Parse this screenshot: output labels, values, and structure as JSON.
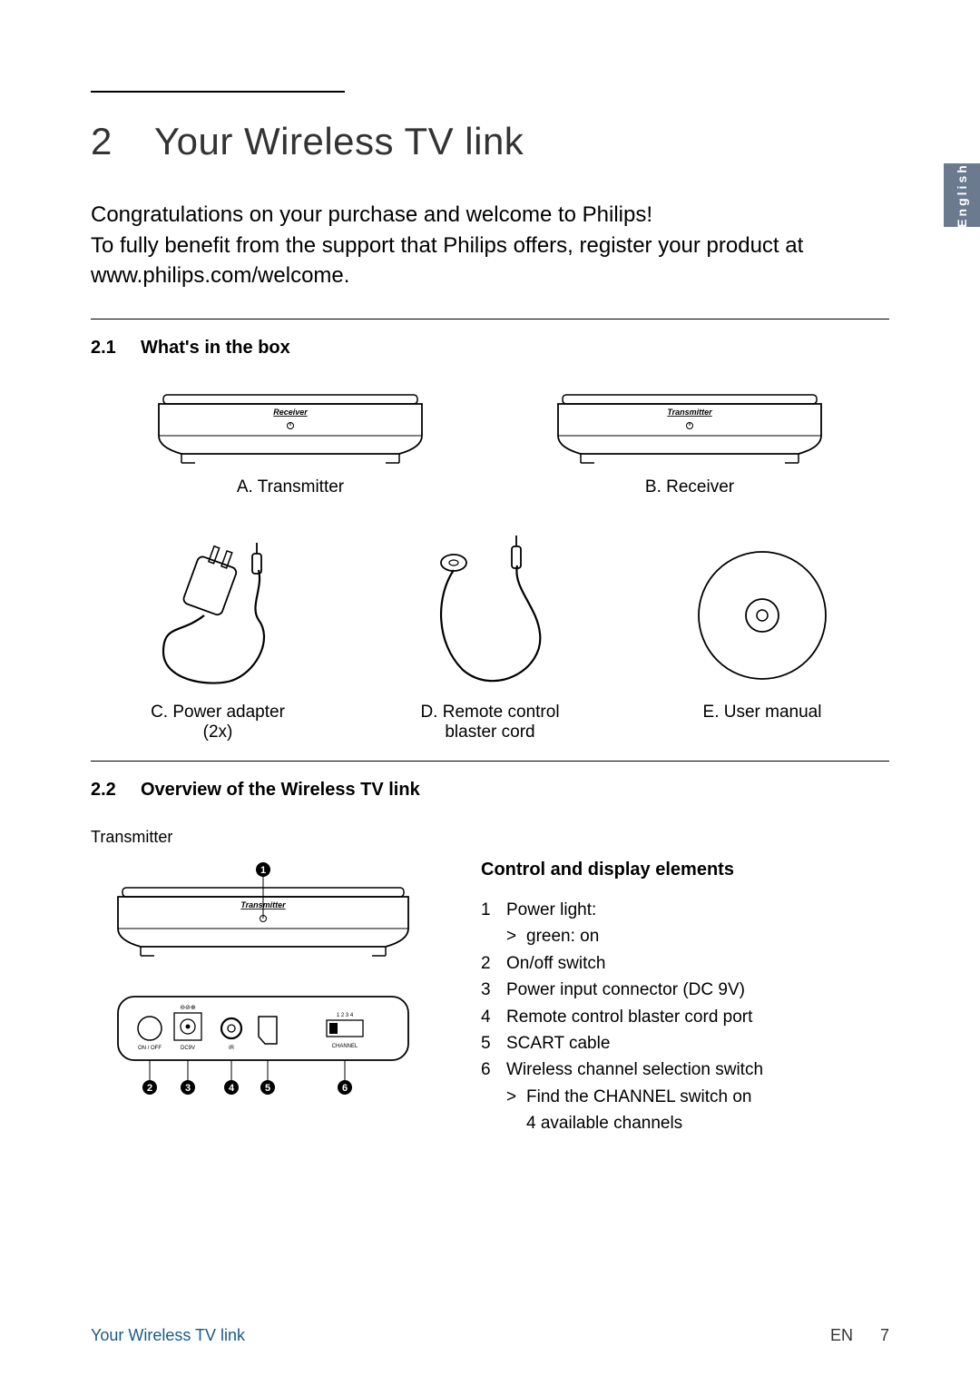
{
  "side_tab": "English",
  "chapter": {
    "num": "2",
    "title": "Your Wireless TV link"
  },
  "intro": {
    "line1": "Congratulations on your purchase and welcome to Philips!",
    "line2": "To fully benefit from the support that Philips offers, register your product at  www.philips.com/welcome."
  },
  "section_2_1": {
    "num": "2.1",
    "title": "What's in the box"
  },
  "box_items": {
    "a": "A. Transmitter",
    "b": "B. Receiver",
    "c1": "C. Power adapter",
    "c2": "(2x)",
    "d1": "D. Remote control",
    "d2": "blaster cord",
    "e": "E. User manual"
  },
  "device_labels": {
    "receiver": "Receiver",
    "transmitter": "Transmitter",
    "on_off": "ON / OFF",
    "dc9v": "DC9V",
    "ir": "IR",
    "channel": "CHANNEL",
    "ch_nums": "1 2 3 4"
  },
  "section_2_2": {
    "num": "2.2",
    "title": "Overview of the Wireless TV link"
  },
  "overview": {
    "left_label": "Transmitter",
    "heading": "Control and display elements",
    "items": [
      {
        "n": "1",
        "t": "Power light:"
      },
      {
        "sub": true,
        "t": "green: on"
      },
      {
        "n": "2",
        "t": "On/off switch"
      },
      {
        "n": "3",
        "t": "Power input connector (DC 9V)"
      },
      {
        "n": "4",
        "t": "Remote control blaster cord port"
      },
      {
        "n": "5",
        "t": "SCART cable"
      },
      {
        "n": "6",
        "t": "Wireless channel selection switch"
      },
      {
        "sub": true,
        "t": "Find the  CHANNEL switch on"
      },
      {
        "subcont": true,
        "t": "4 available channels"
      }
    ]
  },
  "footer": {
    "section": "Your Wireless TV link",
    "lang": "EN",
    "page": "7"
  },
  "colors": {
    "accent": "#1a5a8a",
    "tab": "#6b7a8f"
  }
}
